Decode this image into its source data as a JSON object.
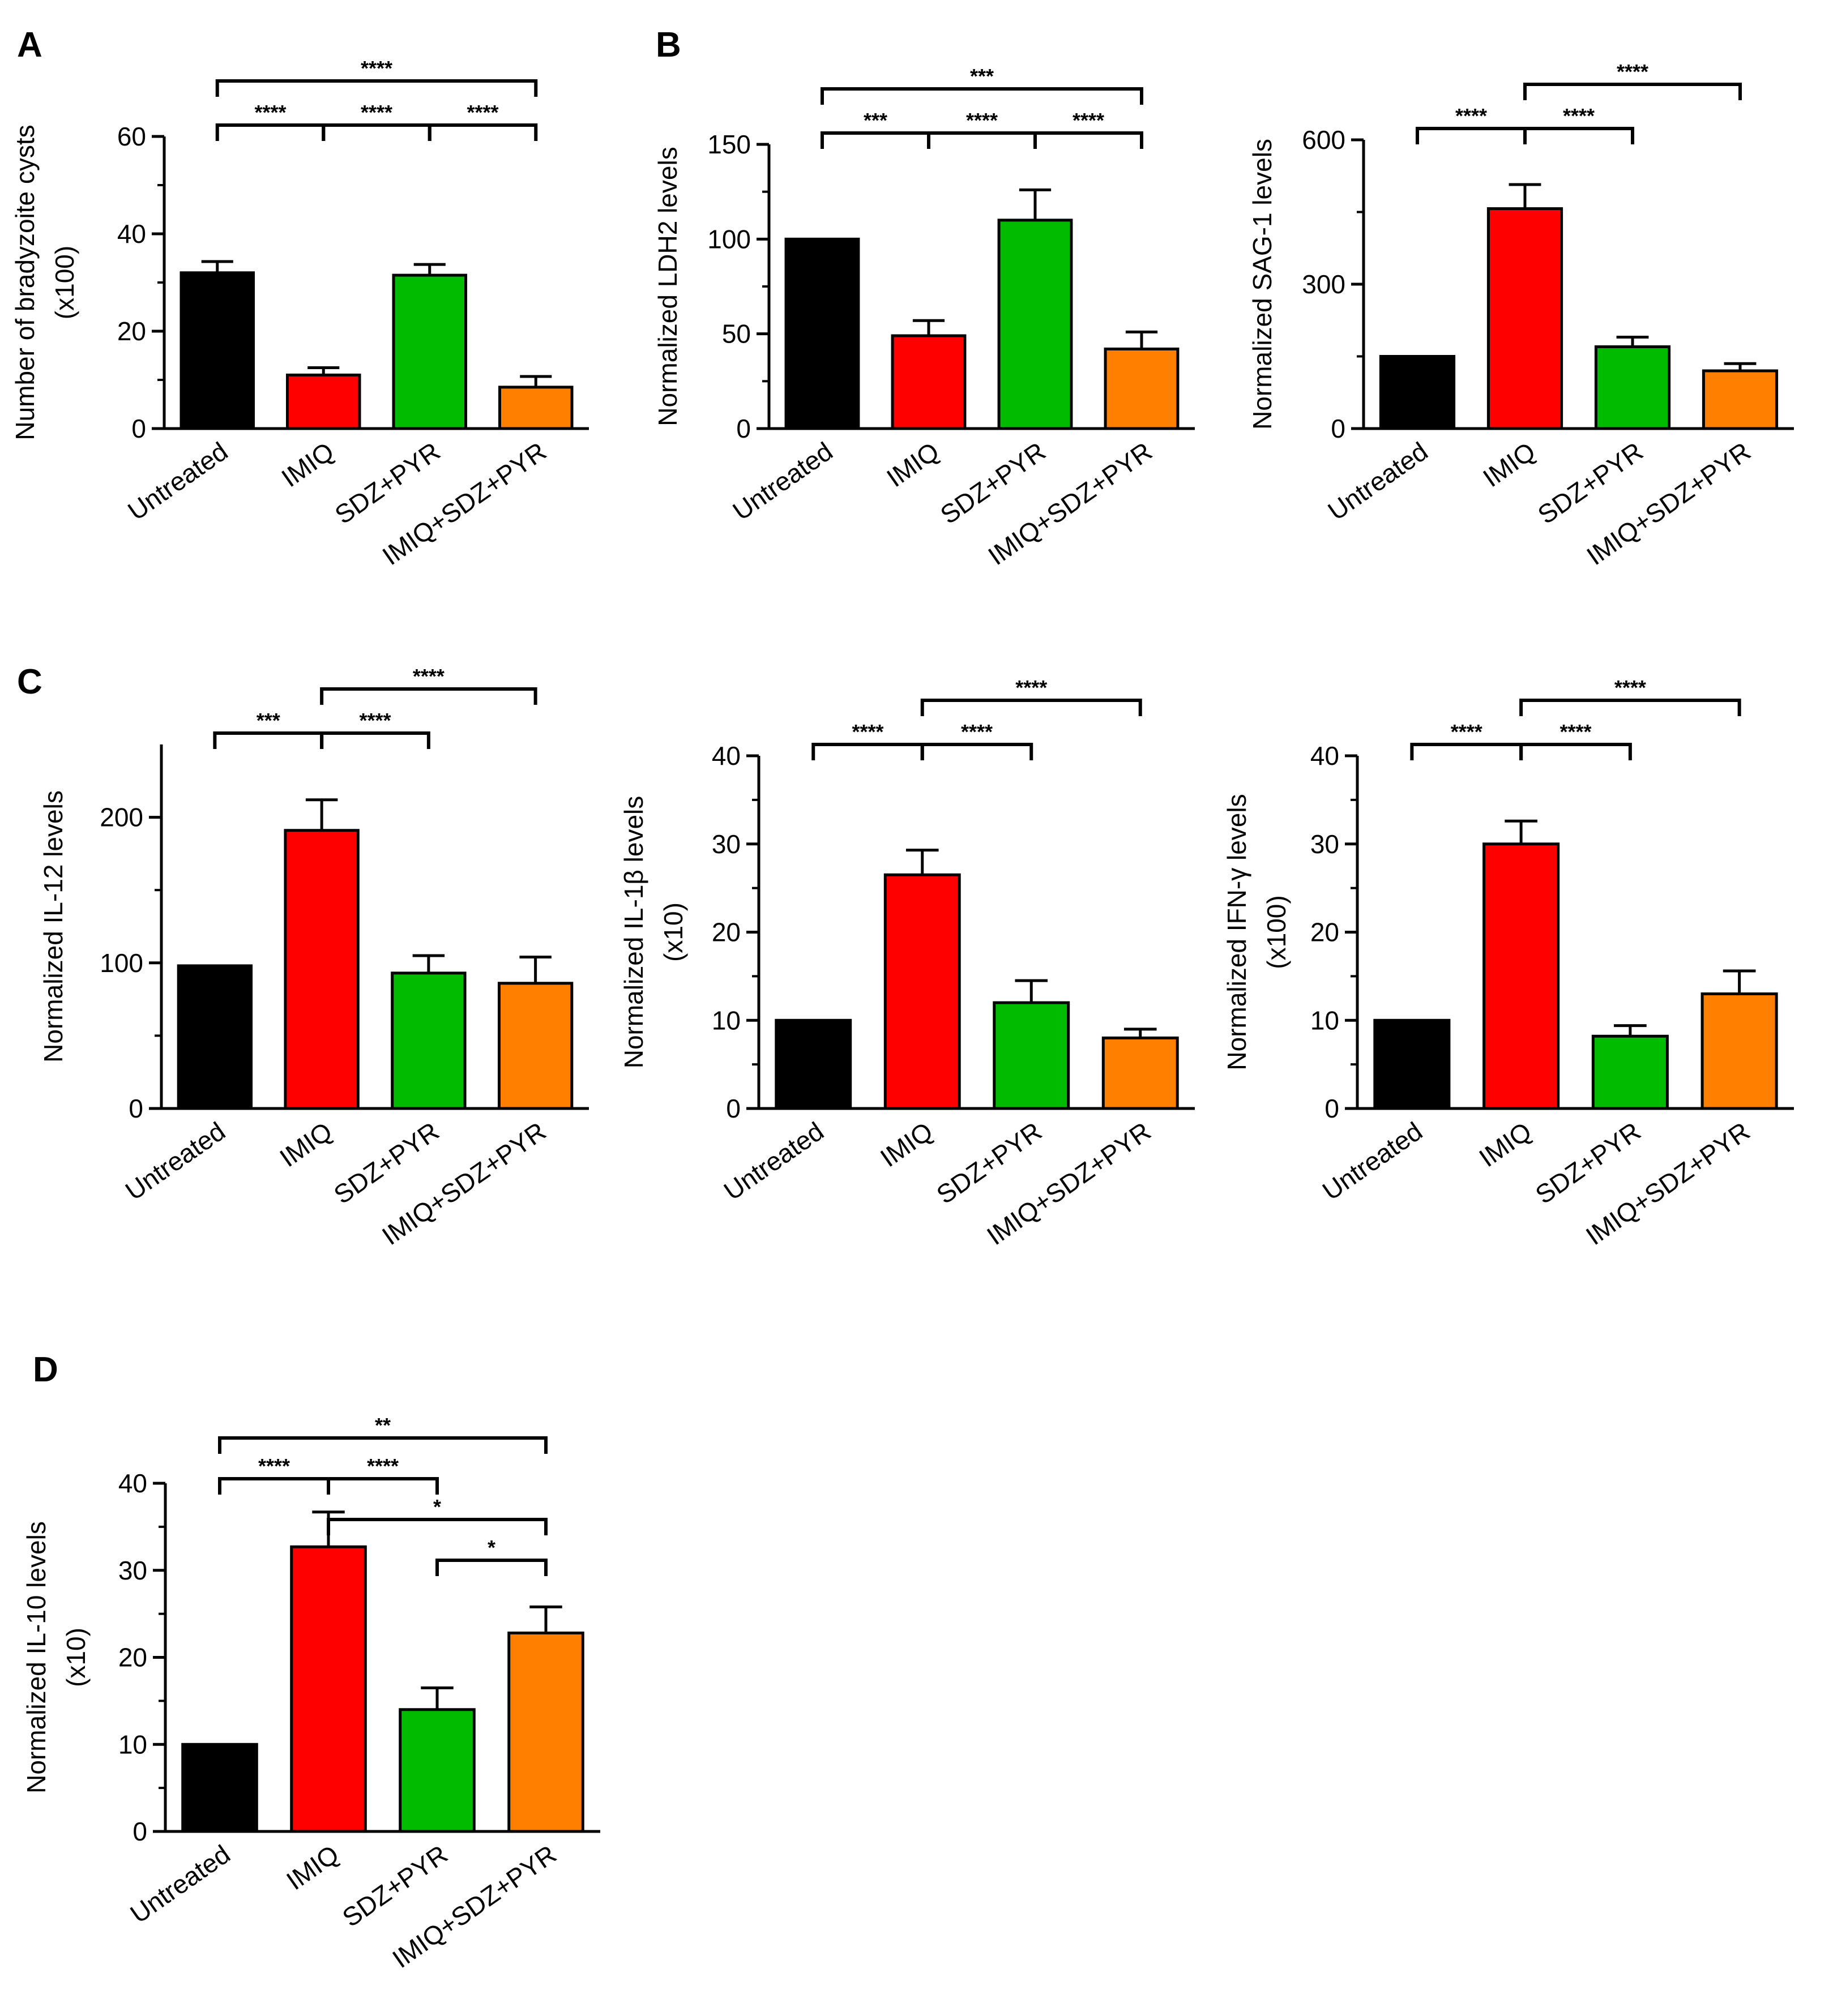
{
  "figure": {
    "categories": [
      "Untreated",
      "IMIQ",
      "SDZ+PYR",
      "IMIQ+SDZ+PYR"
    ],
    "colors": [
      "#000000",
      "#ff0000",
      "#00bb00",
      "#ff8000"
    ]
  },
  "chart_data": [
    {
      "id": "A",
      "panel": "A",
      "type": "bar",
      "ylabel": "Number of bradyzoite cysts",
      "ylabel2": "(x100)",
      "ylim": [
        0,
        60
      ],
      "yticks": [
        0,
        20,
        40,
        60
      ],
      "categories": [
        "Untreated",
        "IMIQ",
        "SDZ+PYR",
        "IMIQ+SDZ+PYR"
      ],
      "values": [
        32,
        11,
        31.5,
        8.5
      ],
      "errors": [
        2.3,
        1.5,
        2.2,
        2.2
      ],
      "significance": [
        {
          "from": 0,
          "to": 3,
          "label": "****",
          "level": 0
        },
        {
          "from": 0,
          "to": 1,
          "label": "****",
          "level": 1
        },
        {
          "from": 1,
          "to": 2,
          "label": "****",
          "level": 1
        },
        {
          "from": 2,
          "to": 3,
          "label": "****",
          "level": 1
        }
      ]
    },
    {
      "id": "B1",
      "panel": "B",
      "type": "bar",
      "ylabel": "Normalized LDH2 levels",
      "ylabel2": "",
      "ylim": [
        0,
        150
      ],
      "yticks": [
        0,
        50,
        100,
        150
      ],
      "categories": [
        "Untreated",
        "IMIQ",
        "SDZ+PYR",
        "IMIQ+SDZ+PYR"
      ],
      "values": [
        100,
        49,
        110,
        42
      ],
      "errors": [
        0,
        8,
        16,
        9
      ],
      "significance": [
        {
          "from": 0,
          "to": 3,
          "label": "***",
          "level": 0
        },
        {
          "from": 0,
          "to": 1,
          "label": "***",
          "level": 1
        },
        {
          "from": 1,
          "to": 2,
          "label": "****",
          "level": 1
        },
        {
          "from": 2,
          "to": 3,
          "label": "****",
          "level": 1
        }
      ]
    },
    {
      "id": "B2",
      "panel": "",
      "type": "bar",
      "ylabel": "Normalized SAG-1 levels",
      "ylabel2": "",
      "ylim": [
        0,
        600
      ],
      "yticks": [
        0,
        300,
        600
      ],
      "categories": [
        "Untreated",
        "IMIQ",
        "SDZ+PYR",
        "IMIQ+SDZ+PYR"
      ],
      "values": [
        150,
        457,
        170,
        120
      ],
      "errors": [
        0,
        50,
        20,
        15
      ],
      "significance": [
        {
          "from": 1,
          "to": 3,
          "label": "****",
          "level": 0
        },
        {
          "from": 0,
          "to": 1,
          "label": "****",
          "level": 1
        },
        {
          "from": 1,
          "to": 2,
          "label": "****",
          "level": 1
        }
      ]
    },
    {
      "id": "C1",
      "panel": "C",
      "type": "bar",
      "ylabel": "Normalized IL-12 levels",
      "ylabel2": "",
      "ylim": [
        0,
        250
      ],
      "yticks": [
        0,
        100,
        200
      ],
      "categories": [
        "Untreated",
        "IMIQ",
        "SDZ+PYR",
        "IMIQ+SDZ+PYR"
      ],
      "values": [
        98,
        191,
        93,
        86
      ],
      "errors": [
        0,
        21,
        12,
        18
      ],
      "significance": [
        {
          "from": 1,
          "to": 3,
          "label": "****",
          "level": 0
        },
        {
          "from": 0,
          "to": 1,
          "label": "***",
          "level": 1
        },
        {
          "from": 1,
          "to": 2,
          "label": "****",
          "level": 1
        }
      ]
    },
    {
      "id": "C2",
      "panel": "",
      "type": "bar",
      "ylabel": "Normalized IL-1β levels",
      "ylabel2": "(x10)",
      "ylim": [
        0,
        40
      ],
      "yticks": [
        0,
        10,
        20,
        30,
        40
      ],
      "categories": [
        "Untreated",
        "IMIQ",
        "SDZ+PYR",
        "IMIQ+SDZ+PYR"
      ],
      "values": [
        10,
        26.5,
        12,
        8
      ],
      "errors": [
        0,
        2.8,
        2.5,
        1
      ],
      "significance": [
        {
          "from": 1,
          "to": 3,
          "label": "****",
          "level": 0
        },
        {
          "from": 0,
          "to": 1,
          "label": "****",
          "level": 1
        },
        {
          "from": 1,
          "to": 2,
          "label": "****",
          "level": 1
        }
      ]
    },
    {
      "id": "C3",
      "panel": "",
      "type": "bar",
      "ylabel": "Normalized IFN-γ levels",
      "ylabel2": "(x100)",
      "ylim": [
        0,
        40
      ],
      "yticks": [
        0,
        10,
        20,
        30,
        40
      ],
      "categories": [
        "Untreated",
        "IMIQ",
        "SDZ+PYR",
        "IMIQ+SDZ+PYR"
      ],
      "values": [
        10,
        30,
        8.2,
        13
      ],
      "errors": [
        0,
        2.6,
        1.2,
        2.6
      ],
      "significance": [
        {
          "from": 1,
          "to": 3,
          "label": "****",
          "level": 0
        },
        {
          "from": 0,
          "to": 1,
          "label": "****",
          "level": 1
        },
        {
          "from": 1,
          "to": 2,
          "label": "****",
          "level": 1
        }
      ]
    },
    {
      "id": "D",
      "panel": "D",
      "type": "bar",
      "ylabel": "Normalized IL-10 levels",
      "ylabel2": "(x10)",
      "ylim": [
        0,
        40
      ],
      "yticks": [
        0,
        10,
        20,
        30,
        40
      ],
      "categories": [
        "Untreated",
        "IMIQ",
        "SDZ+PYR",
        "IMIQ+SDZ+PYR"
      ],
      "values": [
        10,
        32.7,
        14,
        22.8
      ],
      "errors": [
        0,
        4,
        2.5,
        3
      ],
      "significance": [
        {
          "from": 0,
          "to": 3,
          "label": "**",
          "level": 0
        },
        {
          "from": 0,
          "to": 1,
          "label": "****",
          "level": 1
        },
        {
          "from": 1,
          "to": 2,
          "label": "****",
          "level": 1
        },
        {
          "from": 1,
          "to": 3,
          "label": "*",
          "level": 2
        },
        {
          "from": 2,
          "to": 3,
          "label": "*",
          "level": 3
        }
      ]
    }
  ]
}
